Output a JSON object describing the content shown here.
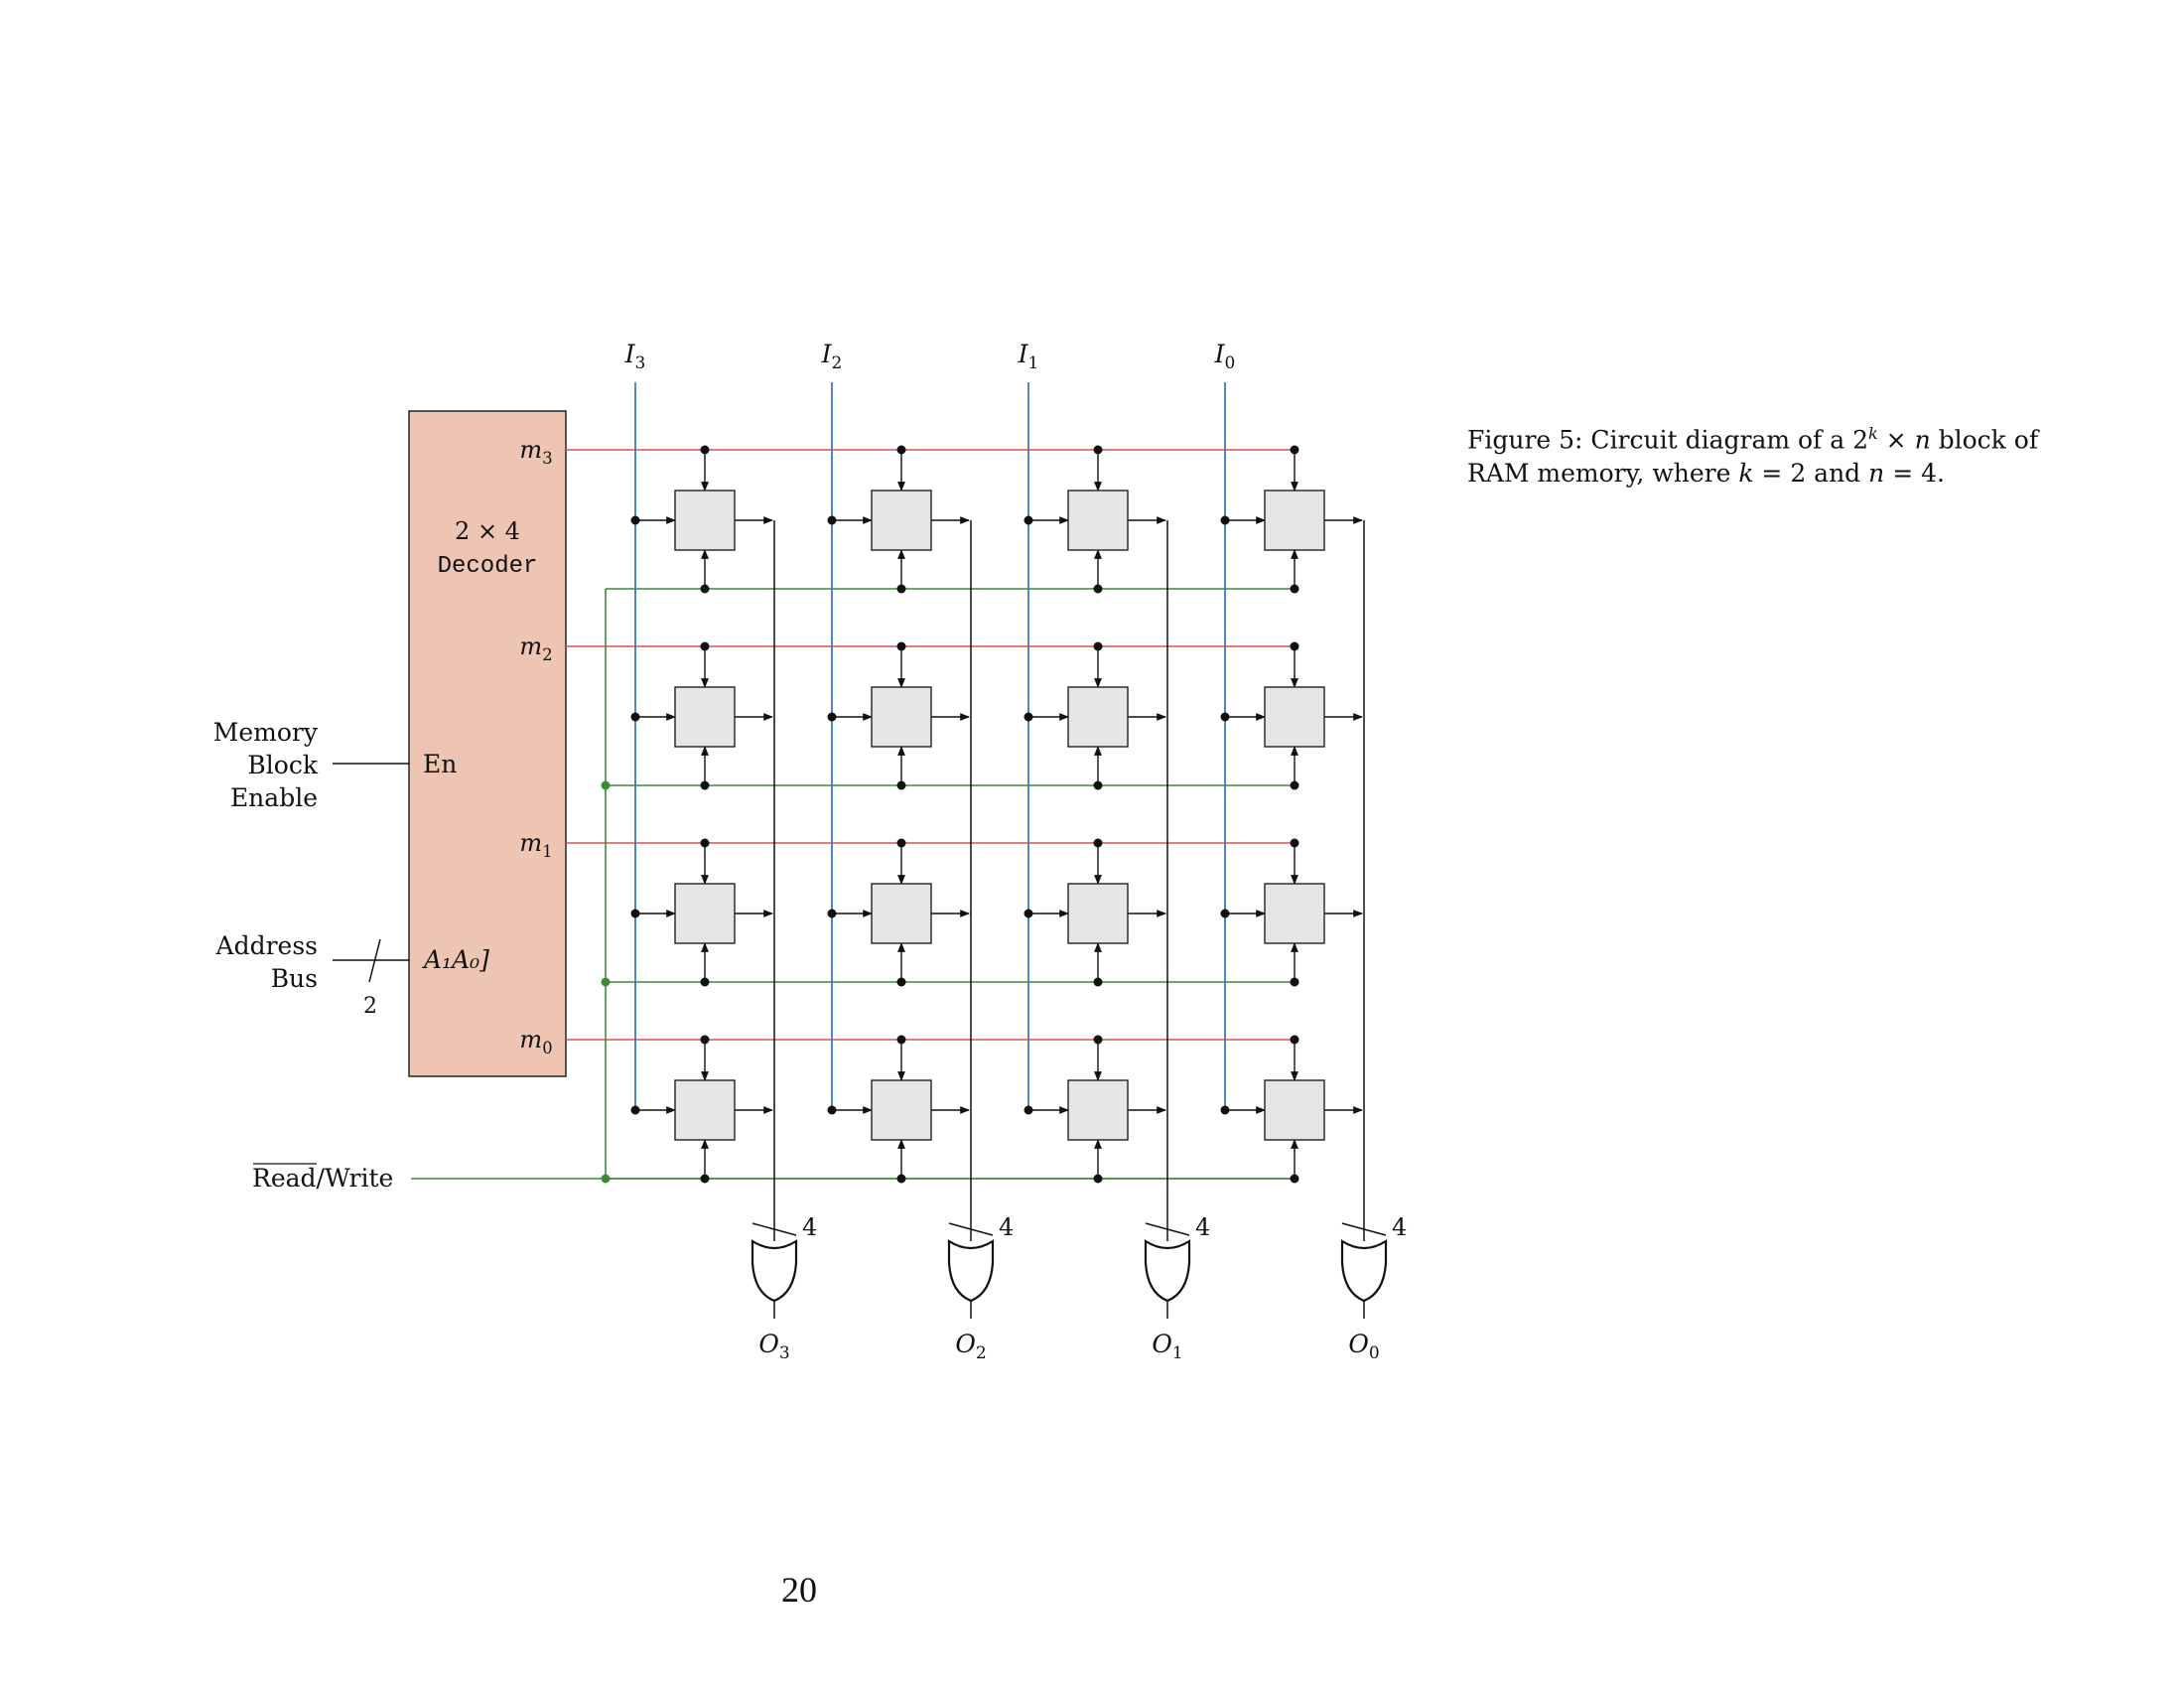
{
  "figure": {
    "inputs": [
      "I3",
      "I2",
      "I1",
      "I0"
    ],
    "input_labels": [
      {
        "base": "I",
        "sub": "3"
      },
      {
        "base": "I",
        "sub": "2"
      },
      {
        "base": "I",
        "sub": "1"
      },
      {
        "base": "I",
        "sub": "0"
      }
    ],
    "outputs": [
      "O3",
      "O2",
      "O1",
      "O0"
    ],
    "output_labels": [
      {
        "base": "O",
        "sub": "3"
      },
      {
        "base": "O",
        "sub": "2"
      },
      {
        "base": "O",
        "sub": "1"
      },
      {
        "base": "O",
        "sub": "0"
      }
    ],
    "decoder": {
      "title": "2 × 4",
      "name": "Decoder",
      "enable": "En",
      "address_pins": "A₁A₀]",
      "row_labels": [
        {
          "base": "m",
          "sub": "3"
        },
        {
          "base": "m",
          "sub": "2"
        },
        {
          "base": "m",
          "sub": "1"
        },
        {
          "base": "m",
          "sub": "0"
        }
      ]
    },
    "signals": {
      "memory_block_enable": [
        "Memory",
        "Block",
        "Enable"
      ],
      "address_bus": [
        "Address",
        "Bus"
      ],
      "address_bus_width": "2",
      "read_write_overlined": "Read",
      "read_write_rest": "/Write"
    },
    "or_gate_bus_width": "4",
    "grid": {
      "rows": 4,
      "cols": 4
    },
    "colors": {
      "decoder_fill": "#eec4b2",
      "input_line": "#3a78c2",
      "word_line": "#d9534f",
      "read_write_line": "#3d8b37",
      "cell_fill": "#e6e6e6"
    }
  },
  "caption": {
    "prefix": "Figure 5: Circuit diagram of a ",
    "base": "2",
    "sup": "k",
    "times": " × ",
    "n": "n",
    "middle": " block of RAM memory, where ",
    "k": "k",
    "eq1": " = 2 and ",
    "n2": "n",
    "eq2": " = 4."
  },
  "page_number": "20"
}
